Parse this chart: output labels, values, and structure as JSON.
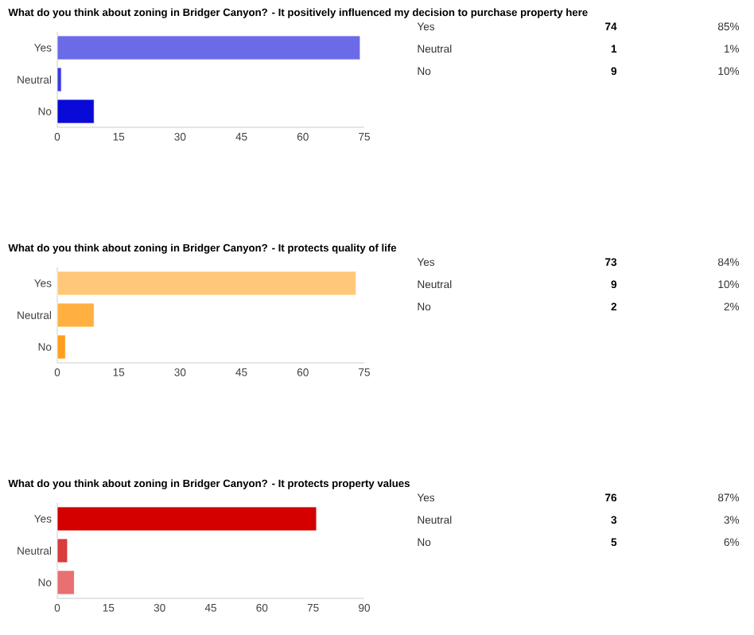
{
  "chart_data": [
    {
      "type": "bar",
      "orientation": "horizontal",
      "title": "What do you think about zoning in Bridger Canyon? - It positively influenced my decision to purchase property here",
      "categories": [
        "Yes",
        "Neutral",
        "No"
      ],
      "values": [
        74,
        1,
        9
      ],
      "colors": [
        "#6b6be8",
        "#3a3ae0",
        "#0a0ad8"
      ],
      "xlim": [
        0,
        75
      ],
      "xticks": [
        0,
        15,
        30,
        45,
        60,
        75
      ],
      "annotations": [
        "74",
        "85%",
        "1",
        "1%",
        "9",
        "10%"
      ]
    },
    {
      "type": "bar",
      "orientation": "horizontal",
      "title": "What do you think about zoning in Bridger Canyon? - It protects quality of life",
      "categories": [
        "Yes",
        "Neutral",
        "No"
      ],
      "values": [
        73,
        9,
        2
      ],
      "colors": [
        "#ffc878",
        "#ffb040",
        "#ff9f20"
      ],
      "xlim": [
        0,
        75
      ],
      "xticks": [
        0,
        15,
        30,
        45,
        60,
        75
      ],
      "annotations": [
        "73",
        "84%",
        "9",
        "10%",
        "2",
        "2%"
      ]
    },
    {
      "type": "bar",
      "orientation": "horizontal",
      "title": "What do you think about zoning in Bridger Canyon? - It protects property values",
      "categories": [
        "Yes",
        "Neutral",
        "No"
      ],
      "values": [
        76,
        3,
        5
      ],
      "colors": [
        "#d40000",
        "#d83c3c",
        "#e87070"
      ],
      "xlim": [
        0,
        90
      ],
      "xticks": [
        0,
        15,
        30,
        45,
        60,
        75,
        90
      ],
      "annotations": [
        "76",
        "87%",
        "3",
        "3%",
        "5",
        "6%"
      ]
    }
  ]
}
